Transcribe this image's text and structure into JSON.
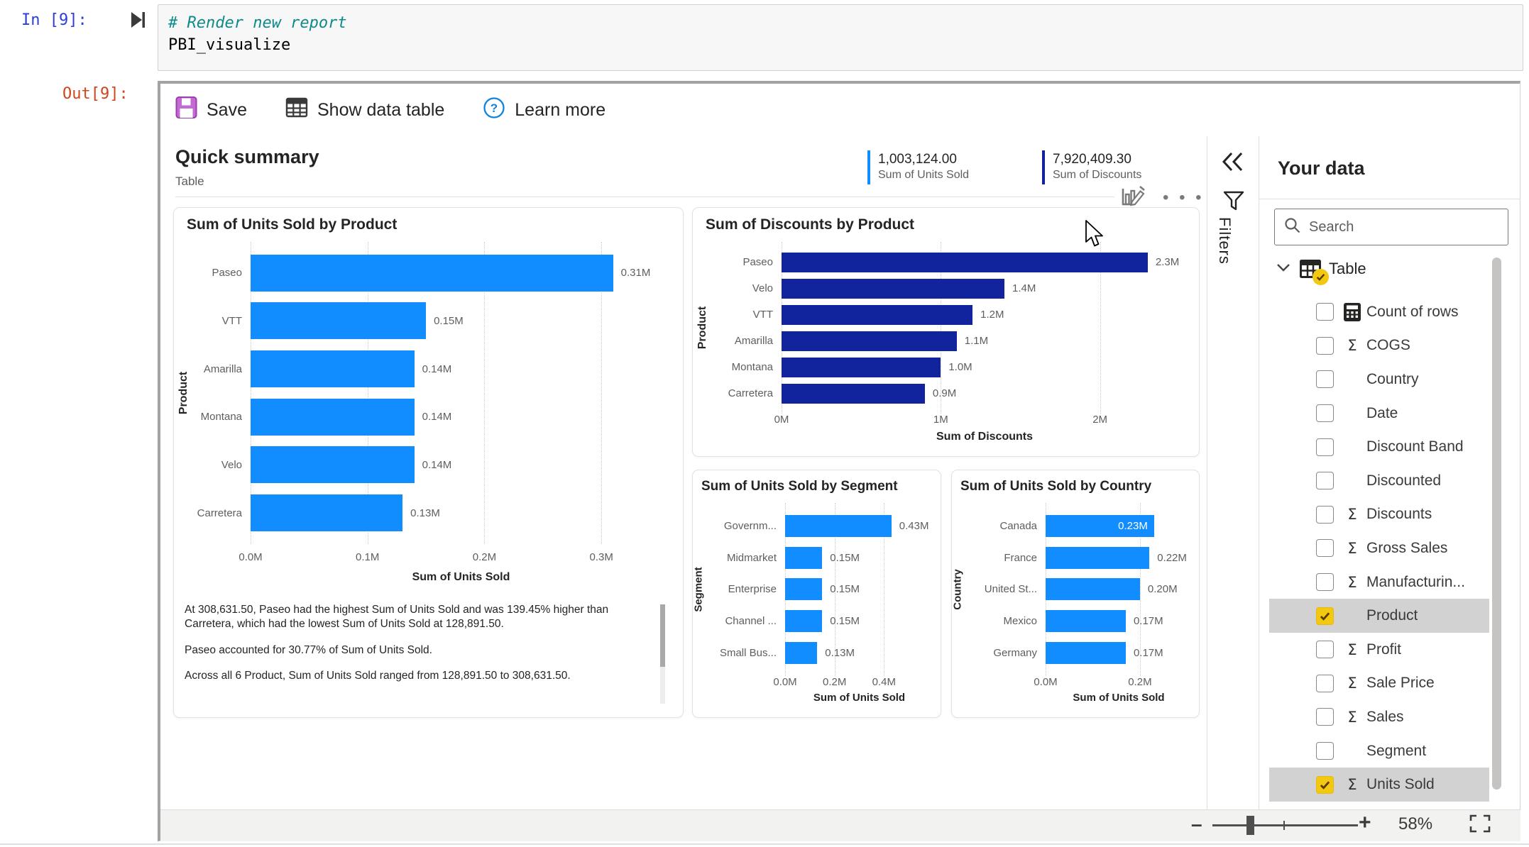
{
  "notebook": {
    "in_prompt": "In [9]:",
    "out_prompt": "Out[9]:",
    "code_comment": "# Render new report",
    "code_line": "PBI_visualize"
  },
  "toolbar": {
    "save_label": "Save",
    "show_data_table_label": "Show data table",
    "learn_more_label": "Learn more"
  },
  "header": {
    "title": "Quick summary",
    "subtitle": "Table",
    "kpis": [
      {
        "value": "1,003,124.00",
        "label": "Sum of Units Sold",
        "color": "#118DFF"
      },
      {
        "value": "7,920,409.30",
        "label": "Sum of Discounts",
        "color": "#12239E"
      }
    ]
  },
  "insights": {
    "paragraphs": [
      "At 308,631.50,  Paseo had the highest Sum of Units Sold and was 139.45% higher than  Carretera, which had the lowest Sum of Units Sold at 128,891.50.",
      "Paseo accounted for 30.77% of Sum of Units Sold.",
      "Across all 6 Product, Sum of Units Sold ranged from 128,891.50 to 308,631.50."
    ]
  },
  "chart_data": [
    {
      "type": "bar",
      "orientation": "horizontal",
      "title": "Sum of Units Sold by Product",
      "ylabel": "Product",
      "xlabel": "Sum of Units Sold",
      "categories": [
        "Paseo",
        "VTT",
        "Amarilla",
        "Montana",
        "Velo",
        "Carretera"
      ],
      "values": [
        0.31,
        0.15,
        0.14,
        0.14,
        0.14,
        0.13
      ],
      "value_labels": [
        "0.31M",
        "0.15M",
        "0.14M",
        "0.14M",
        "0.14M",
        "0.13M"
      ],
      "ticks": [
        {
          "v": 0,
          "label": "0.0M"
        },
        {
          "v": 0.1,
          "label": "0.1M"
        },
        {
          "v": 0.2,
          "label": "0.2M"
        },
        {
          "v": 0.3,
          "label": "0.3M"
        }
      ],
      "xmax": 0.36,
      "color": "#118DFF",
      "inside_label_indexes": []
    },
    {
      "type": "bar",
      "orientation": "horizontal",
      "title": "Sum of Discounts by Product",
      "ylabel": "Product",
      "xlabel": "Sum of Discounts",
      "categories": [
        "Paseo",
        "Velo",
        "VTT",
        "Amarilla",
        "Montana",
        "Carretera"
      ],
      "values": [
        2.3,
        1.4,
        1.2,
        1.1,
        1.0,
        0.9
      ],
      "value_labels": [
        "2.3M",
        "1.4M",
        "1.2M",
        "1.1M",
        "1.0M",
        "0.9M"
      ],
      "ticks": [
        {
          "v": 0,
          "label": "0M"
        },
        {
          "v": 1,
          "label": "1M"
        },
        {
          "v": 2,
          "label": "2M"
        }
      ],
      "xmax": 2.55,
      "color": "#12239E",
      "inside_label_indexes": []
    },
    {
      "type": "bar",
      "orientation": "horizontal",
      "title": "Sum of Units Sold by Segment",
      "ylabel": "Segment",
      "xlabel": "Sum of Units Sold",
      "categories": [
        "Governm...",
        "Midmarket",
        "Enterprise",
        "Channel ...",
        "Small Bus..."
      ],
      "values": [
        0.43,
        0.15,
        0.15,
        0.15,
        0.13
      ],
      "value_labels": [
        "0.43M",
        "0.15M",
        "0.15M",
        "0.15M",
        "0.13M"
      ],
      "ticks": [
        {
          "v": 0,
          "label": "0.0M"
        },
        {
          "v": 0.2,
          "label": "0.2M"
        },
        {
          "v": 0.4,
          "label": "0.4M"
        }
      ],
      "xmax": 0.6,
      "color": "#118DFF",
      "inside_label_indexes": []
    },
    {
      "type": "bar",
      "orientation": "horizontal",
      "title": "Sum of Units Sold by Country",
      "ylabel": "Country",
      "xlabel": "Sum of Units Sold",
      "categories": [
        "Canada",
        "France",
        "United St...",
        "Mexico",
        "Germany"
      ],
      "values": [
        0.23,
        0.22,
        0.2,
        0.17,
        0.17
      ],
      "value_labels": [
        "0.23M",
        "0.22M",
        "0.20M",
        "0.17M",
        "0.17M"
      ],
      "ticks": [
        {
          "v": 0,
          "label": "0.0M"
        },
        {
          "v": 0.2,
          "label": "0.2M"
        }
      ],
      "xmax": 0.31,
      "color": "#118DFF",
      "inside_label_indexes": [
        0
      ]
    }
  ],
  "filters": {
    "label": "Filters"
  },
  "your_data": {
    "title": "Your data",
    "search_placeholder": "Search",
    "table_name": "Table",
    "fields": [
      {
        "label": "Count of rows",
        "icon": "calculator",
        "checked": false,
        "highlighted": false
      },
      {
        "label": "COGS",
        "icon": "sigma",
        "checked": false,
        "highlighted": false
      },
      {
        "label": "Country",
        "icon": null,
        "checked": false,
        "highlighted": false
      },
      {
        "label": "Date",
        "icon": null,
        "checked": false,
        "highlighted": false
      },
      {
        "label": "Discount Band",
        "icon": null,
        "checked": false,
        "highlighted": false
      },
      {
        "label": "Discounted",
        "icon": null,
        "checked": false,
        "highlighted": false
      },
      {
        "label": "Discounts",
        "icon": "sigma",
        "checked": false,
        "highlighted": false
      },
      {
        "label": "Gross Sales",
        "icon": "sigma",
        "checked": false,
        "highlighted": false
      },
      {
        "label": "Manufacturin...",
        "icon": "sigma",
        "checked": false,
        "highlighted": false
      },
      {
        "label": "Product",
        "icon": null,
        "checked": true,
        "highlighted": true
      },
      {
        "label": "Profit",
        "icon": "sigma",
        "checked": false,
        "highlighted": false
      },
      {
        "label": "Sale Price",
        "icon": "sigma",
        "checked": false,
        "highlighted": false
      },
      {
        "label": "Sales",
        "icon": "sigma",
        "checked": false,
        "highlighted": false
      },
      {
        "label": "Segment",
        "icon": null,
        "checked": false,
        "highlighted": false
      },
      {
        "label": "Units Sold",
        "icon": "sigma",
        "checked": true,
        "highlighted": true
      }
    ]
  },
  "zoom": {
    "level": "58%"
  }
}
